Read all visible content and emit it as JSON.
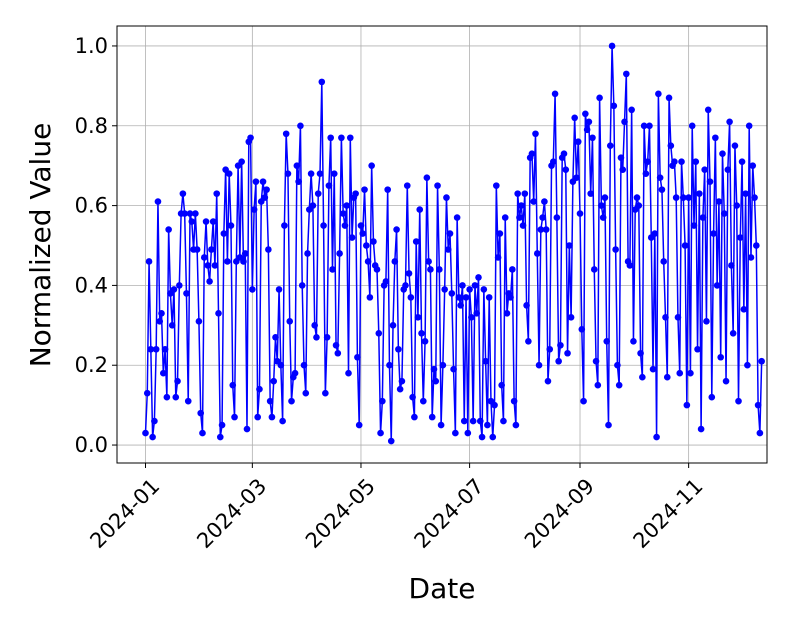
{
  "chart_data": {
    "type": "line",
    "xlabel": "Date",
    "ylabel": "Normalized Value",
    "x": [
      0,
      1,
      2,
      3,
      4,
      5,
      6,
      7,
      8,
      9,
      10,
      11,
      12,
      13,
      14,
      15,
      16,
      17,
      18,
      19,
      20,
      21,
      22,
      23,
      24,
      25,
      26,
      27,
      28,
      29,
      30,
      31,
      32,
      33,
      34,
      35,
      36,
      37,
      38,
      39,
      40,
      41,
      42,
      43,
      44,
      45,
      46,
      47,
      48,
      49,
      50,
      51,
      52,
      53,
      54,
      55,
      56,
      57,
      58,
      59,
      60,
      61,
      62,
      63,
      64,
      65,
      66,
      67,
      68,
      69,
      70,
      71,
      72,
      73,
      74,
      75,
      76,
      77,
      78,
      79,
      80,
      81,
      82,
      83,
      84,
      85,
      86,
      87,
      88,
      89,
      90,
      91,
      92,
      93,
      94,
      95,
      96,
      97,
      98,
      99,
      100,
      101,
      102,
      103,
      104,
      105,
      106,
      107,
      108,
      109,
      110,
      111,
      112,
      113,
      114,
      115,
      116,
      117,
      118,
      119,
      120,
      121,
      122,
      123,
      124,
      125,
      126,
      127,
      128,
      129,
      130,
      131,
      132,
      133,
      134,
      135,
      136,
      137,
      138,
      139,
      140,
      141,
      142,
      143,
      144,
      145,
      146,
      147,
      148,
      149,
      150,
      151,
      152,
      153,
      154,
      155,
      156,
      157,
      158,
      159,
      160,
      161,
      162,
      163,
      164,
      165,
      166,
      167,
      168,
      169,
      170,
      171,
      172,
      173,
      174,
      175,
      176,
      177,
      178,
      179,
      180,
      181,
      182,
      183,
      184,
      185,
      186,
      187,
      188,
      189,
      190,
      191,
      192,
      193,
      194,
      195,
      196,
      197,
      198,
      199,
      200,
      201,
      202,
      203,
      204,
      205,
      206,
      207,
      208,
      209,
      210,
      211,
      212,
      213,
      214,
      215,
      216,
      217,
      218,
      219,
      220,
      221,
      222,
      223,
      224,
      225,
      226,
      227,
      228,
      229,
      230,
      231,
      232,
      233,
      234,
      235,
      236,
      237,
      238,
      239,
      240,
      241,
      242,
      243,
      244,
      245,
      246,
      247,
      248,
      249,
      250,
      251,
      252,
      253,
      254,
      255,
      256,
      257,
      258,
      259,
      260,
      261,
      262,
      263,
      264,
      265,
      266,
      267,
      268,
      269,
      270,
      271,
      272,
      273,
      274,
      275,
      276,
      277,
      278,
      279,
      280,
      281,
      282,
      283,
      284,
      285,
      286,
      287,
      288,
      289,
      290,
      291,
      292,
      293,
      294,
      295,
      296,
      297,
      298,
      299,
      300,
      301,
      302,
      303,
      304,
      305,
      306,
      307,
      308,
      309,
      310,
      311,
      312,
      313,
      314,
      315,
      316,
      317,
      318,
      319,
      320,
      321,
      322,
      323,
      324,
      325,
      326,
      327,
      328,
      329,
      330,
      331,
      332,
      333,
      334,
      335,
      336,
      337,
      338,
      339,
      340,
      341,
      342,
      343,
      344,
      345,
      346
    ],
    "series": [
      {
        "color": "#0000ff",
        "values": [
          0.03,
          0.13,
          0.46,
          0.24,
          0.02,
          0.06,
          0.24,
          0.61,
          0.31,
          0.33,
          0.18,
          0.24,
          0.12,
          0.54,
          0.38,
          0.3,
          0.39,
          0.12,
          0.16,
          0.4,
          0.58,
          0.63,
          0.58,
          0.38,
          0.11,
          0.58,
          0.56,
          0.49,
          0.58,
          0.49,
          0.31,
          0.08,
          0.03,
          0.47,
          0.56,
          0.45,
          0.41,
          0.49,
          0.56,
          0.45,
          0.63,
          0.33,
          0.02,
          0.05,
          0.53,
          0.69,
          0.46,
          0.68,
          0.55,
          0.15,
          0.07,
          0.46,
          0.7,
          0.47,
          0.71,
          0.46,
          0.48,
          0.04,
          0.76,
          0.77,
          0.39,
          0.59,
          0.66,
          0.07,
          0.14,
          0.61,
          0.66,
          0.62,
          0.64,
          0.49,
          0.11,
          0.07,
          0.16,
          0.27,
          0.21,
          0.39,
          0.2,
          0.06,
          0.55,
          0.78,
          0.68,
          0.31,
          0.11,
          0.17,
          0.18,
          0.7,
          0.66,
          0.8,
          0.4,
          0.2,
          0.13,
          0.48,
          0.59,
          0.68,
          0.6,
          0.3,
          0.27,
          0.63,
          0.68,
          0.91,
          0.55,
          0.13,
          0.27,
          0.65,
          0.77,
          0.44,
          0.68,
          0.25,
          0.23,
          0.48,
          0.77,
          0.58,
          0.55,
          0.6,
          0.18,
          0.77,
          0.52,
          0.62,
          0.63,
          0.22,
          0.05,
          0.55,
          0.53,
          0.64,
          0.5,
          0.46,
          0.37,
          0.7,
          0.51,
          0.45,
          0.44,
          0.28,
          0.03,
          0.11,
          0.4,
          0.41,
          0.64,
          0.2,
          0.01,
          0.3,
          0.46,
          0.54,
          0.24,
          0.14,
          0.16,
          0.39,
          0.4,
          0.65,
          0.43,
          0.37,
          0.12,
          0.07,
          0.51,
          0.32,
          0.59,
          0.28,
          0.11,
          0.26,
          0.67,
          0.46,
          0.44,
          0.07,
          0.19,
          0.16,
          0.65,
          0.44,
          0.05,
          0.2,
          0.39,
          0.62,
          0.49,
          0.53,
          0.38,
          0.19,
          0.03,
          0.57,
          0.37,
          0.35,
          0.4,
          0.06,
          0.37,
          0.03,
          0.39,
          0.32,
          0.06,
          0.4,
          0.33,
          0.42,
          0.06,
          0.02,
          0.39,
          0.21,
          0.05,
          0.37,
          0.11,
          0.02,
          0.1,
          0.65,
          0.47,
          0.53,
          0.15,
          0.06,
          0.57,
          0.33,
          0.38,
          0.37,
          0.44,
          0.11,
          0.05,
          0.63,
          0.57,
          0.6,
          0.55,
          0.63,
          0.35,
          0.26,
          0.72,
          0.73,
          0.61,
          0.78,
          0.48,
          0.2,
          0.54,
          0.57,
          0.61,
          0.54,
          0.16,
          0.24,
          0.7,
          0.71,
          0.88,
          0.57,
          0.21,
          0.25,
          0.72,
          0.73,
          0.69,
          0.23,
          0.5,
          0.32,
          0.66,
          0.82,
          0.67,
          0.76,
          0.58,
          0.29,
          0.11,
          0.83,
          0.79,
          0.81,
          0.63,
          0.77,
          0.44,
          0.21,
          0.15,
          0.87,
          0.6,
          0.57,
          0.62,
          0.26,
          0.05,
          0.75,
          1.0,
          0.85,
          0.49,
          0.2,
          0.15,
          0.72,
          0.69,
          0.81,
          0.93,
          0.46,
          0.45,
          0.84,
          0.26,
          0.59,
          0.62,
          0.6,
          0.23,
          0.17,
          0.8,
          0.68,
          0.71,
          0.8,
          0.52,
          0.19,
          0.53,
          0.02,
          0.88,
          0.67,
          0.64,
          0.46,
          0.32,
          0.17,
          0.87,
          0.75,
          0.7,
          0.71,
          0.62,
          0.32,
          0.18,
          0.71,
          0.62,
          0.5,
          0.1,
          0.62,
          0.18,
          0.8,
          0.55,
          0.71,
          0.24,
          0.63,
          0.04,
          0.57,
          0.69,
          0.31,
          0.84,
          0.66,
          0.12,
          0.53,
          0.77,
          0.4,
          0.61,
          0.22,
          0.73,
          0.58,
          0.16,
          0.69,
          0.81,
          0.45,
          0.28,
          0.75,
          0.6,
          0.11,
          0.52,
          0.71,
          0.34,
          0.63,
          0.2,
          0.8,
          0.47,
          0.7,
          0.62,
          0.5,
          0.1,
          0.03,
          0.21
        ]
      }
    ],
    "xlim": [
      -16,
      349
    ],
    "xticks": [
      {
        "value": 0,
        "label": "2024-01"
      },
      {
        "value": 60,
        "label": "2024-03"
      },
      {
        "value": 121,
        "label": "2024-05"
      },
      {
        "value": 182,
        "label": "2024-07"
      },
      {
        "value": 244,
        "label": "2024-09"
      },
      {
        "value": 305,
        "label": "2024-11"
      }
    ],
    "ylim": [
      -0.045,
      1.05
    ],
    "yticks": [
      {
        "value": 0,
        "label": "0.0"
      },
      0.2,
      0.4,
      0.6,
      0.8,
      {
        "value": 1,
        "label": "1.0"
      }
    ],
    "grid": true
  }
}
